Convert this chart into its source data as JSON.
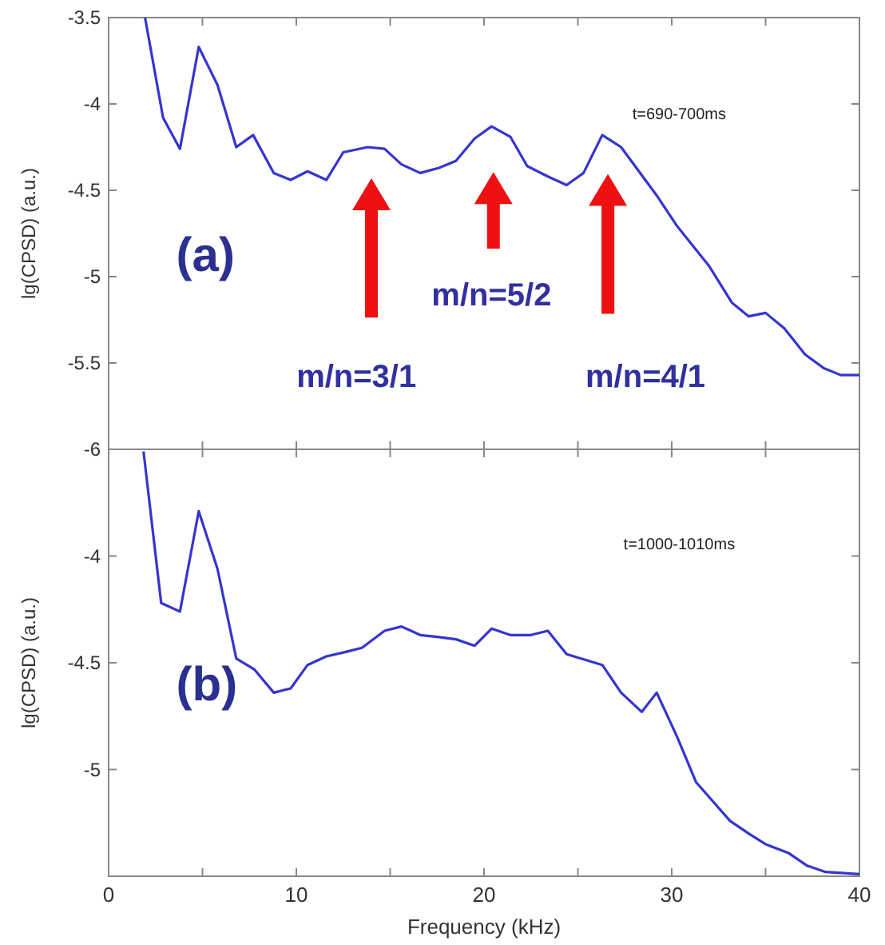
{
  "chart_data": [
    {
      "type": "line",
      "ylabel": "lg(CPSD) (a.u.)",
      "xlim": [
        0,
        40
      ],
      "ylim": [
        -6,
        -3.5
      ],
      "xticks": [
        0,
        {
          "value": 5,
          "label": null
        },
        10,
        {
          "value": 15,
          "label": null
        },
        20,
        {
          "value": 25,
          "label": null
        },
        30,
        {
          "value": 35,
          "label": null
        },
        40
      ],
      "yticks": [
        -6,
        -5.5,
        -5,
        -4.5,
        -4,
        -3.5
      ],
      "tick_labels": "y",
      "grid": false,
      "annotations": [
        "t=690-700ms",
        "(a)",
        "m/n=3/1",
        "m/n=5/2",
        "m/n=4/1"
      ],
      "series": [
        {
          "color": "#3535d0",
          "x": [
            1.94,
            2.9,
            3.8,
            4.8,
            5.8,
            6.8,
            7.7,
            8.8,
            9.7,
            10.6,
            11.6,
            12.5,
            13.8,
            14.7,
            15.6,
            16.6,
            17.6,
            18.5,
            19.5,
            20.4,
            21.4,
            22.3,
            23.4,
            24.4,
            25.3,
            26.3,
            27.3,
            29.2,
            30.3,
            32.0,
            33.2,
            34.1,
            35.0,
            36.0,
            37.1,
            38.1,
            39.0,
            40
          ],
          "values": [
            -3.5,
            -4.08,
            -4.26,
            -3.67,
            -3.89,
            -4.25,
            -4.18,
            -4.4,
            -4.44,
            -4.39,
            -4.44,
            -4.28,
            -4.25,
            -4.26,
            -4.35,
            -4.4,
            -4.37,
            -4.33,
            -4.2,
            -4.13,
            -4.19,
            -4.36,
            -4.42,
            -4.47,
            -4.4,
            -4.18,
            -4.25,
            -4.53,
            -4.71,
            -4.94,
            -5.15,
            -5.23,
            -5.21,
            -5.3,
            -5.45,
            -5.53,
            -5.57,
            -5.57
          ]
        }
      ]
    },
    {
      "type": "line",
      "xlabel": "Frequency (kHz)",
      "ylabel": "lg(CPSD) (a.u.)",
      "xlim": [
        0,
        40
      ],
      "ylim": [
        -5.5,
        -3.5
      ],
      "xticks": [
        0,
        {
          "value": 5,
          "label": null
        },
        10,
        {
          "value": 15,
          "label": null
        },
        20,
        {
          "value": 25,
          "label": null
        },
        30,
        {
          "value": 35,
          "label": null
        },
        40
      ],
      "yticks": [
        {
          "value": -5.5,
          "label": null
        },
        -5,
        -4.5,
        -4,
        {
          "value": -3.5,
          "label": null
        }
      ],
      "grid": false,
      "annotations": [
        "t=1000-1010ms",
        "(b)"
      ],
      "series": [
        {
          "color": "#3535d0",
          "x": [
            1.86,
            2.8,
            3.8,
            4.8,
            5.8,
            6.8,
            7.75,
            8.8,
            9.7,
            10.6,
            11.6,
            12.6,
            13.5,
            14.7,
            15.6,
            16.6,
            17.6,
            18.5,
            19.5,
            20.4,
            21.4,
            22.5,
            23.4,
            24.4,
            26.3,
            27.3,
            28.4,
            29.2,
            30.3,
            31.3,
            32.2,
            33.1,
            34.1,
            35.0,
            36.2,
            37.2,
            38.2,
            40
          ],
          "values": [
            -3.51,
            -4.22,
            -4.26,
            -3.79,
            -4.06,
            -4.48,
            -4.53,
            -4.64,
            -4.62,
            -4.51,
            -4.47,
            -4.45,
            -4.43,
            -4.35,
            -4.33,
            -4.37,
            -4.38,
            -4.39,
            -4.42,
            -4.34,
            -4.37,
            -4.37,
            -4.35,
            -4.46,
            -4.51,
            -4.64,
            -4.73,
            -4.64,
            -4.85,
            -5.06,
            -5.15,
            -5.24,
            -5.3,
            -5.35,
            -5.39,
            -5.45,
            -5.48,
            -5.49
          ]
        }
      ]
    }
  ]
}
